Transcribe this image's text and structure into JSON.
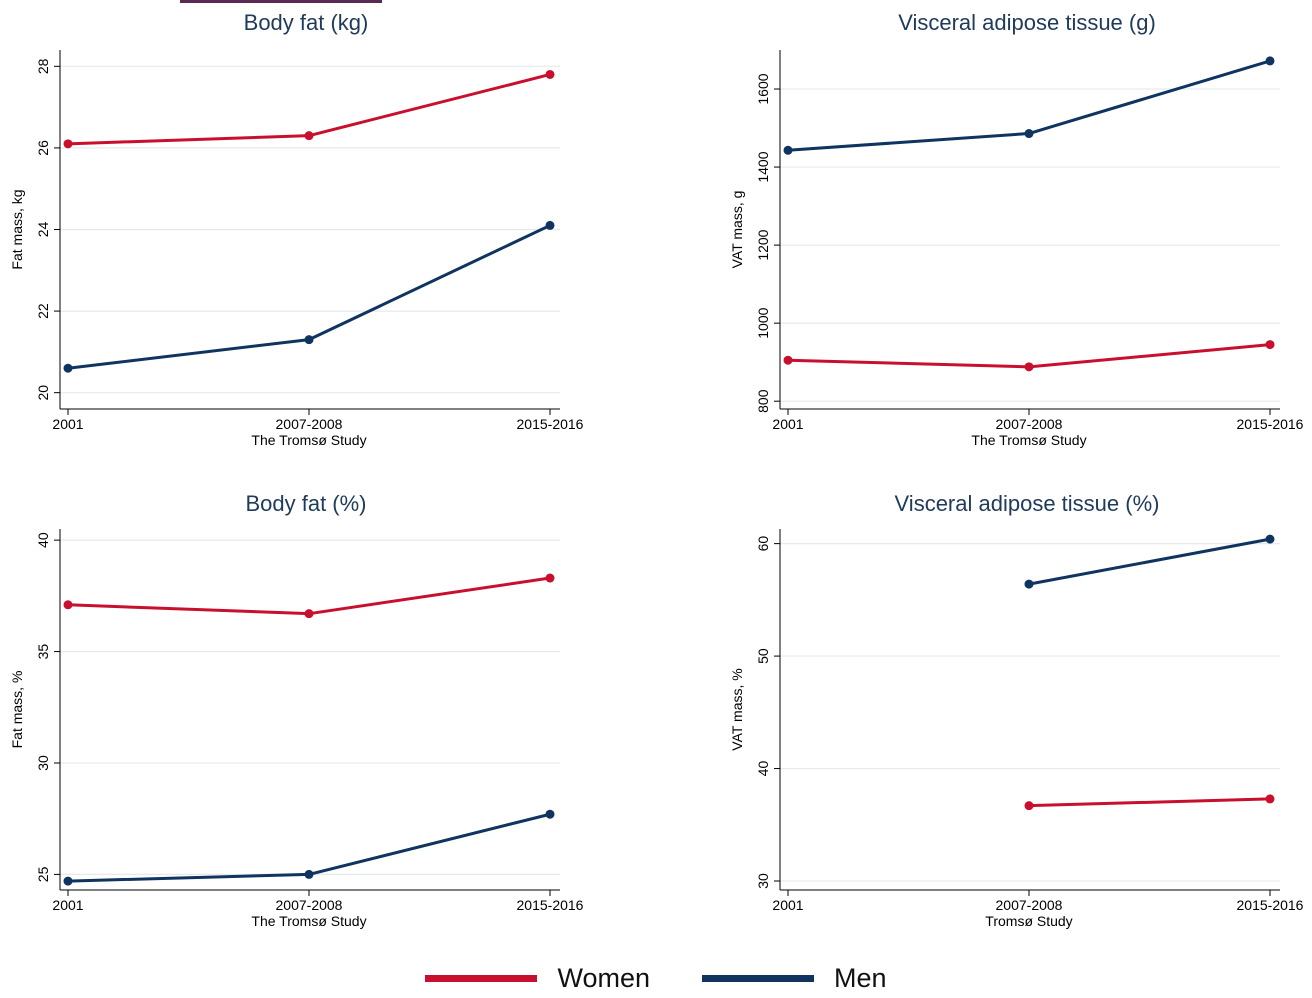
{
  "colors": {
    "women": "#c8102e",
    "men": "#0f3460"
  },
  "legend": {
    "women": "Women",
    "men": "Men"
  },
  "chart_data": [
    {
      "type": "line",
      "title": "Body fat (kg)",
      "xlabel": "The Tromsø Study",
      "ylabel": "Fat mass, kg",
      "categories": [
        "2001",
        "2007-2008",
        "2015-2016"
      ],
      "ylim": [
        19.6,
        28.4
      ],
      "yticks": [
        20,
        22,
        24,
        26,
        28
      ],
      "grid": true,
      "series": [
        {
          "name": "Women",
          "values": [
            26.1,
            26.3,
            27.8
          ]
        },
        {
          "name": "Men",
          "values": [
            20.6,
            21.3,
            24.1
          ]
        }
      ]
    },
    {
      "type": "line",
      "title": "Visceral adipose tissue (g)",
      "xlabel": "The Tromsø Study",
      "ylabel": "VAT mass, g",
      "categories": [
        "2001",
        "2007-2008",
        "2015-2016"
      ],
      "ylim": [
        780,
        1700
      ],
      "yticks": [
        800,
        1000,
        1200,
        1400,
        1600
      ],
      "grid": true,
      "series": [
        {
          "name": "Men",
          "values": [
            1443,
            1486,
            1672
          ]
        },
        {
          "name": "Women",
          "values": [
            905,
            888,
            945
          ]
        }
      ]
    },
    {
      "type": "line",
      "title": "Body fat (%)",
      "xlabel": "The Tromsø Study",
      "ylabel": "Fat mass, %",
      "categories": [
        "2001",
        "2007-2008",
        "2015-2016"
      ],
      "ylim": [
        24.3,
        40.5
      ],
      "yticks": [
        25,
        30,
        35,
        40
      ],
      "grid": true,
      "series": [
        {
          "name": "Women",
          "values": [
            37.1,
            36.7,
            38.3
          ]
        },
        {
          "name": "Men",
          "values": [
            24.7,
            25.0,
            27.7
          ]
        }
      ]
    },
    {
      "type": "line",
      "title": "Visceral adipose tissue (%)",
      "xlabel": "Tromsø Study",
      "ylabel": "VAT mass, %",
      "categories": [
        "2001",
        "2007-2008",
        "2015-2016"
      ],
      "ylim": [
        29.2,
        61.3
      ],
      "yticks": [
        30,
        40,
        50,
        60
      ],
      "grid": true,
      "series": [
        {
          "name": "Men",
          "values": [
            null,
            56.4,
            60.4
          ]
        },
        {
          "name": "Women",
          "values": [
            null,
            36.7,
            37.3
          ]
        }
      ]
    }
  ]
}
